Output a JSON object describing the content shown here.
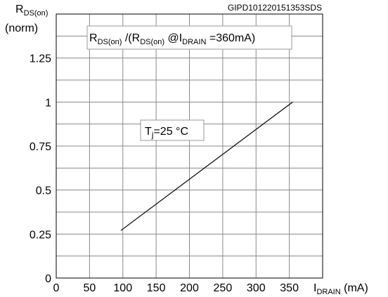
{
  "chart_data": {
    "type": "line",
    "code": "GIPD101220151353SDS",
    "title": {
      "r": "R",
      "ds_on": "DS(on)",
      "mid": " /(R",
      "at_i": " @I",
      "drain": "DRAIN",
      "end": " =360mA)"
    },
    "annotation": {
      "t": "T",
      "j": "j",
      "rest": "=25 °C"
    },
    "ylabel": {
      "main": "R",
      "sub": "DS(on)",
      "unit": "(norm)"
    },
    "xlabel": {
      "main": "I",
      "sub": "DRAIN",
      "unit": " (mA)"
    },
    "xlim": [
      0,
      400
    ],
    "ylim": [
      0,
      1.5
    ],
    "xticks": [
      0,
      50,
      100,
      150,
      200,
      250,
      300,
      350
    ],
    "yticks": [
      0,
      0.25,
      0.5,
      0.75,
      1,
      1.25
    ],
    "x_tick_labels": [
      "0",
      "50",
      "100",
      "150",
      "200",
      "250",
      "300",
      "350"
    ],
    "y_tick_labels": [
      "0",
      "0.25",
      "0.5",
      "0.75",
      "1",
      "1.25"
    ],
    "grid": true,
    "series": [
      {
        "x": [
          97,
          355
        ],
        "y": [
          0.27,
          1.0
        ],
        "color": "#000000"
      }
    ]
  }
}
